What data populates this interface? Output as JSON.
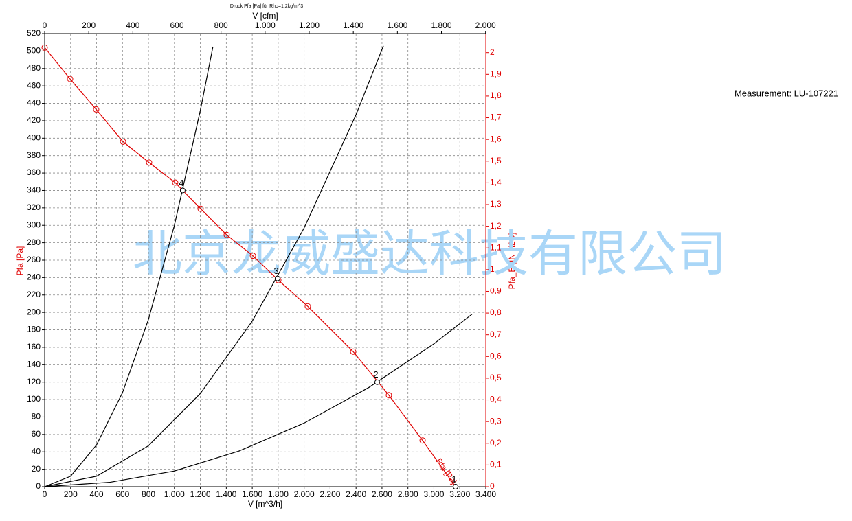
{
  "chart_data": {
    "type": "line",
    "title": "Druck Pfa [Pa] für Rho=1,2kg/m^3",
    "x_label": "V [m^3/h]",
    "x2_label": "V [cfm]",
    "y_label": "Pfa [Pa]",
    "y2_label": "Pfa_E [IN H2O]",
    "xlim": [
      0,
      3400
    ],
    "xticks": [
      0,
      200,
      400,
      600,
      800,
      {
        "value": 1000,
        "label": "1.000"
      },
      {
        "value": 1200,
        "label": "1.200"
      },
      {
        "value": 1400,
        "label": "1.400"
      },
      {
        "value": 1600,
        "label": "1.600"
      },
      {
        "value": 1800,
        "label": "1.800"
      },
      {
        "value": 2000,
        "label": "2.000"
      },
      {
        "value": 2200,
        "label": "2.200"
      },
      {
        "value": 2400,
        "label": "2.400"
      },
      {
        "value": 2600,
        "label": "2.600"
      },
      {
        "value": 2800,
        "label": "2.800"
      },
      {
        "value": 3000,
        "label": "3.000"
      },
      {
        "value": 3200,
        "label": "3.200"
      },
      {
        "value": 3400,
        "label": "3.400"
      }
    ],
    "x2lim": [
      0,
      2001
    ],
    "x2ticks": [
      0,
      200,
      400,
      600,
      800,
      {
        "value": 1000,
        "label": "1.000"
      },
      {
        "value": 1200,
        "label": "1.200"
      },
      {
        "value": 1400,
        "label": "1.400"
      },
      {
        "value": 1600,
        "label": "1.600"
      },
      {
        "value": 1800,
        "label": "1.800"
      },
      {
        "value": 2000,
        "label": "2.000"
      }
    ],
    "ylim": [
      0,
      520
    ],
    "yticks": [
      0,
      20,
      40,
      60,
      80,
      100,
      120,
      140,
      160,
      180,
      200,
      220,
      240,
      260,
      280,
      300,
      320,
      340,
      360,
      380,
      400,
      420,
      440,
      460,
      480,
      500,
      520
    ],
    "y2lim": [
      0,
      2.0876
    ],
    "y2ticks": [
      0,
      {
        "value": 0.1,
        "label": "0,1"
      },
      {
        "value": 0.2,
        "label": "0,2"
      },
      {
        "value": 0.3,
        "label": "0,3"
      },
      {
        "value": 0.4,
        "label": "0,4"
      },
      {
        "value": 0.5,
        "label": "0,5"
      },
      {
        "value": 0.6,
        "label": "0,6"
      },
      {
        "value": 0.7,
        "label": "0,7"
      },
      {
        "value": 0.8,
        "label": "0,8"
      },
      {
        "value": 0.9,
        "label": "0,9"
      },
      1,
      {
        "value": 1.1,
        "label": "1,1"
      },
      {
        "value": 1.2,
        "label": "1,2"
      },
      {
        "value": 1.3,
        "label": "1,3"
      },
      {
        "value": 1.4,
        "label": "1,4"
      },
      {
        "value": 1.5,
        "label": "1,5"
      },
      {
        "value": 1.6,
        "label": "1,6"
      },
      {
        "value": 1.7,
        "label": "1,7"
      },
      {
        "value": 1.8,
        "label": "1,8"
      },
      {
        "value": 1.9,
        "label": "1,9"
      },
      2
    ],
    "grid": true,
    "axis_color": "#e00000",
    "series": [
      {
        "name": "Pfa [Pa]",
        "color": "#e00000",
        "markers": true,
        "x": [
          0,
          196,
          397,
          604,
          805,
          1006,
          1202,
          1403,
          1605,
          1801,
          2028,
          2378,
          2653,
          2913,
          3167
        ],
        "values": [
          504,
          468,
          433,
          396,
          372,
          349,
          319,
          289,
          265,
          237,
          207,
          155,
          105,
          53,
          0
        ]
      },
      {
        "color": "#000000",
        "x": [
          0,
          200,
          400,
          600,
          800,
          1000,
          1200,
          1297
        ],
        "values": [
          0,
          12,
          48,
          108,
          192,
          300,
          432,
          505
        ]
      },
      {
        "color": "#000000",
        "x": [
          0,
          400,
          800,
          1200,
          1600,
          2000,
          2400,
          2611
        ],
        "values": [
          0,
          12,
          47,
          107,
          190,
          297,
          427,
          506
        ]
      },
      {
        "color": "#000000",
        "x": [
          0,
          500,
          1000,
          1500,
          2000,
          2500,
          3000,
          3294
        ],
        "values": [
          0,
          5,
          18,
          41,
          73,
          114,
          164,
          198
        ]
      }
    ],
    "operating_points": {
      "x": [
        1064,
        1795,
        2563,
        3167
      ],
      "values": [
        340,
        239,
        120,
        0
      ],
      "labels": [
        "4",
        "3",
        "2",
        "1"
      ]
    }
  },
  "measurement": "Measurement: LU-107221",
  "watermark": "北京龙威盛达科技有限公司"
}
